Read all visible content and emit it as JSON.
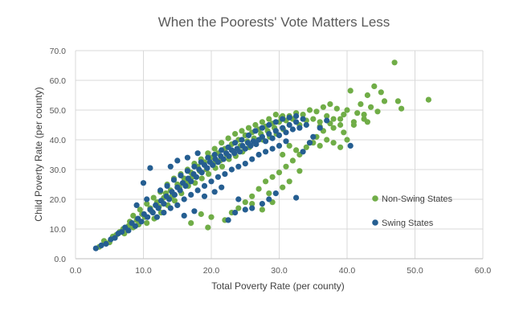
{
  "chart_data": {
    "type": "scatter",
    "title": "When the Poorests' Vote Matters Less",
    "xlabel": "Total Poverty Rate (per county)",
    "ylabel": "Child Poverty Rate (per county)",
    "xlim": [
      0,
      60
    ],
    "ylim": [
      0,
      70
    ],
    "xticks": [
      "0.0",
      "10.0",
      "20.0",
      "30.0",
      "40.0",
      "50.0",
      "60.0"
    ],
    "yticks": [
      "0.0",
      "10.0",
      "20.0",
      "30.0",
      "40.0",
      "50.0",
      "60.0",
      "70.0"
    ],
    "grid": true,
    "legend_position": "right",
    "series": [
      {
        "name": "Non-Swing States",
        "color": "#70ad47",
        "points": [
          [
            3.5,
            4.0
          ],
          [
            4.2,
            6.0
          ],
          [
            5.0,
            5.5
          ],
          [
            5.5,
            7.5
          ],
          [
            6.0,
            8.0
          ],
          [
            6.5,
            9.0
          ],
          [
            7.0,
            10.0
          ],
          [
            7.2,
            8.5
          ],
          [
            7.8,
            11.0
          ],
          [
            8.0,
            12.5
          ],
          [
            8.5,
            10.5
          ],
          [
            9.0,
            13.0
          ],
          [
            9.3,
            11.5
          ],
          [
            9.8,
            15.0
          ],
          [
            10.2,
            14.0
          ],
          [
            10.5,
            12.0
          ],
          [
            11.0,
            17.0
          ],
          [
            11.2,
            16.0
          ],
          [
            11.6,
            13.5
          ],
          [
            12.0,
            19.0
          ],
          [
            12.3,
            17.5
          ],
          [
            12.6,
            15.5
          ],
          [
            13.0,
            20.5
          ],
          [
            13.3,
            22.0
          ],
          [
            13.6,
            18.0
          ],
          [
            14.0,
            23.0
          ],
          [
            14.2,
            21.0
          ],
          [
            14.6,
            19.5
          ],
          [
            15.0,
            25.0
          ],
          [
            15.3,
            24.0
          ],
          [
            15.6,
            22.0
          ],
          [
            16.0,
            27.0
          ],
          [
            16.3,
            26.0
          ],
          [
            16.6,
            24.5
          ],
          [
            17.0,
            29.0
          ],
          [
            17.2,
            27.5
          ],
          [
            17.6,
            25.5
          ],
          [
            18.0,
            31.0
          ],
          [
            18.3,
            29.5
          ],
          [
            18.6,
            27.0
          ],
          [
            19.0,
            32.5
          ],
          [
            19.3,
            30.0
          ],
          [
            19.6,
            28.5
          ],
          [
            20.0,
            34.0
          ],
          [
            20.3,
            32.0
          ],
          [
            20.6,
            30.5
          ],
          [
            21.0,
            35.5
          ],
          [
            21.3,
            33.0
          ],
          [
            21.6,
            31.0
          ],
          [
            22.0,
            37.0
          ],
          [
            22.3,
            35.0
          ],
          [
            22.6,
            33.5
          ],
          [
            23.0,
            38.5
          ],
          [
            23.3,
            36.0
          ],
          [
            23.6,
            34.5
          ],
          [
            24.0,
            40.0
          ],
          [
            24.3,
            38.0
          ],
          [
            24.6,
            36.0
          ],
          [
            25.0,
            41.5
          ],
          [
            25.3,
            39.5
          ],
          [
            25.6,
            37.5
          ],
          [
            26.0,
            42.5
          ],
          [
            26.3,
            40.5
          ],
          [
            26.6,
            38.5
          ],
          [
            27.0,
            43.5
          ],
          [
            27.3,
            42.0
          ],
          [
            27.6,
            40.0
          ],
          [
            28.0,
            44.5
          ],
          [
            28.3,
            43.0
          ],
          [
            28.6,
            41.0
          ],
          [
            29.0,
            45.5
          ],
          [
            29.3,
            44.0
          ],
          [
            29.6,
            42.0
          ],
          [
            30.0,
            46.0
          ],
          [
            30.3,
            47.5
          ],
          [
            30.6,
            43.5
          ],
          [
            31.0,
            46.5
          ],
          [
            31.5,
            48.0
          ],
          [
            32.0,
            47.0
          ],
          [
            32.5,
            49.0
          ],
          [
            33.0,
            45.0
          ],
          [
            33.5,
            48.5
          ],
          [
            34.0,
            46.5
          ],
          [
            34.5,
            50.0
          ],
          [
            35.0,
            47.0
          ],
          [
            35.5,
            49.5
          ],
          [
            36.0,
            46.0
          ],
          [
            36.5,
            51.0
          ],
          [
            37.0,
            48.0
          ],
          [
            37.5,
            52.0
          ],
          [
            38.0,
            47.0
          ],
          [
            38.5,
            50.5
          ],
          [
            39.0,
            45.0
          ],
          [
            39.5,
            48.5
          ],
          [
            40.0,
            50.0
          ],
          [
            40.5,
            56.5
          ],
          [
            41.0,
            46.0
          ],
          [
            41.5,
            49.0
          ],
          [
            42.0,
            52.0
          ],
          [
            42.5,
            47.0
          ],
          [
            43.0,
            55.0
          ],
          [
            43.5,
            51.0
          ],
          [
            44.0,
            58.0
          ],
          [
            44.5,
            49.5
          ],
          [
            45.0,
            56.0
          ],
          [
            45.5,
            53.0
          ],
          [
            47.0,
            66.0
          ],
          [
            47.5,
            53.0
          ],
          [
            48.0,
            50.5
          ],
          [
            52.0,
            53.5
          ],
          [
            22.0,
            13.0
          ],
          [
            23.0,
            15.5
          ],
          [
            24.0,
            17.0
          ],
          [
            25.0,
            19.0
          ],
          [
            26.0,
            21.0
          ],
          [
            27.0,
            23.5
          ],
          [
            28.0,
            26.0
          ],
          [
            29.0,
            27.5
          ],
          [
            30.0,
            29.0
          ],
          [
            31.0,
            31.0
          ],
          [
            32.0,
            33.0
          ],
          [
            33.0,
            35.0
          ],
          [
            34.0,
            37.5
          ],
          [
            35.0,
            39.0
          ],
          [
            36.0,
            38.0
          ],
          [
            37.0,
            40.0
          ],
          [
            38.0,
            39.0
          ],
          [
            39.0,
            37.5
          ],
          [
            40.0,
            40.0
          ],
          [
            27.5,
            16.5
          ],
          [
            29.0,
            19.0
          ],
          [
            30.5,
            24.0
          ],
          [
            31.5,
            26.0
          ],
          [
            26.0,
            18.5
          ],
          [
            19.5,
            10.5
          ],
          [
            20.0,
            14.0
          ],
          [
            17.0,
            12.0
          ],
          [
            18.5,
            15.0
          ],
          [
            28.5,
            22.0
          ],
          [
            33.0,
            29.5
          ],
          [
            36.5,
            43.0
          ],
          [
            38.0,
            44.0
          ],
          [
            41.0,
            45.0
          ],
          [
            43.0,
            46.0
          ],
          [
            39.5,
            42.5
          ],
          [
            35.5,
            41.0
          ],
          [
            34.5,
            39.0
          ],
          [
            32.5,
            36.5
          ],
          [
            31.5,
            38.0
          ],
          [
            30.5,
            35.0
          ],
          [
            12.5,
            22.5
          ],
          [
            13.5,
            25.0
          ],
          [
            14.5,
            27.0
          ],
          [
            15.5,
            28.5
          ],
          [
            16.5,
            30.0
          ],
          [
            17.5,
            32.0
          ],
          [
            18.5,
            33.5
          ],
          [
            19.5,
            35.5
          ],
          [
            20.5,
            37.0
          ],
          [
            21.5,
            39.0
          ],
          [
            22.5,
            40.5
          ],
          [
            23.5,
            42.0
          ],
          [
            24.5,
            43.0
          ],
          [
            25.5,
            44.0
          ],
          [
            26.5,
            45.0
          ],
          [
            27.5,
            46.0
          ],
          [
            11.5,
            20.5
          ],
          [
            10.5,
            18.5
          ],
          [
            9.5,
            16.5
          ],
          [
            8.5,
            14.5
          ],
          [
            29.5,
            48.5
          ],
          [
            30.5,
            48.0
          ],
          [
            28.5,
            47.0
          ],
          [
            36.0,
            44.5
          ],
          [
            37.5,
            45.5
          ],
          [
            39.0,
            47.0
          ],
          [
            42.5,
            48.5
          ]
        ]
      },
      {
        "name": "Swing States",
        "color": "#255e91",
        "points": [
          [
            3.0,
            3.5
          ],
          [
            3.8,
            4.5
          ],
          [
            4.5,
            5.0
          ],
          [
            5.2,
            6.5
          ],
          [
            5.8,
            7.0
          ],
          [
            6.3,
            8.5
          ],
          [
            6.8,
            9.0
          ],
          [
            7.3,
            10.5
          ],
          [
            7.8,
            9.5
          ],
          [
            8.3,
            12.0
          ],
          [
            8.8,
            11.0
          ],
          [
            9.2,
            13.5
          ],
          [
            9.7,
            12.5
          ],
          [
            10.1,
            15.0
          ],
          [
            10.6,
            14.0
          ],
          [
            11.0,
            16.5
          ],
          [
            11.4,
            15.5
          ],
          [
            11.8,
            18.0
          ],
          [
            12.2,
            17.0
          ],
          [
            12.6,
            19.5
          ],
          [
            13.0,
            18.5
          ],
          [
            13.4,
            21.0
          ],
          [
            13.8,
            20.0
          ],
          [
            14.2,
            22.5
          ],
          [
            14.6,
            21.5
          ],
          [
            15.0,
            24.0
          ],
          [
            15.4,
            23.0
          ],
          [
            15.8,
            25.5
          ],
          [
            16.2,
            24.5
          ],
          [
            16.6,
            27.0
          ],
          [
            17.0,
            26.0
          ],
          [
            17.4,
            28.5
          ],
          [
            17.8,
            27.5
          ],
          [
            18.2,
            30.0
          ],
          [
            18.6,
            29.0
          ],
          [
            19.0,
            31.5
          ],
          [
            19.4,
            30.5
          ],
          [
            19.8,
            32.5
          ],
          [
            20.2,
            31.5
          ],
          [
            20.6,
            33.5
          ],
          [
            21.0,
            32.5
          ],
          [
            21.4,
            34.5
          ],
          [
            21.8,
            33.5
          ],
          [
            22.2,
            35.5
          ],
          [
            22.6,
            34.5
          ],
          [
            23.0,
            36.5
          ],
          [
            23.4,
            35.5
          ],
          [
            23.8,
            37.0
          ],
          [
            24.2,
            36.0
          ],
          [
            24.6,
            38.0
          ],
          [
            25.0,
            37.0
          ],
          [
            25.4,
            39.0
          ],
          [
            25.8,
            38.0
          ],
          [
            26.2,
            39.5
          ],
          [
            26.6,
            38.5
          ],
          [
            27.0,
            40.0
          ],
          [
            27.5,
            41.0
          ],
          [
            28.0,
            39.5
          ],
          [
            28.5,
            42.0
          ],
          [
            29.0,
            40.5
          ],
          [
            29.5,
            43.0
          ],
          [
            30.0,
            41.5
          ],
          [
            30.5,
            44.0
          ],
          [
            31.0,
            42.5
          ],
          [
            31.5,
            45.0
          ],
          [
            32.0,
            43.5
          ],
          [
            32.5,
            46.0
          ],
          [
            33.0,
            44.0
          ],
          [
            33.5,
            47.0
          ],
          [
            34.0,
            45.0
          ],
          [
            15.0,
            18.0
          ],
          [
            16.0,
            20.0
          ],
          [
            17.0,
            21.5
          ],
          [
            18.0,
            23.0
          ],
          [
            19.0,
            24.5
          ],
          [
            20.0,
            26.0
          ],
          [
            21.0,
            27.5
          ],
          [
            22.0,
            28.5
          ],
          [
            23.0,
            30.0
          ],
          [
            24.0,
            31.0
          ],
          [
            25.0,
            32.0
          ],
          [
            26.0,
            33.5
          ],
          [
            27.0,
            35.0
          ],
          [
            28.0,
            36.0
          ],
          [
            29.0,
            37.0
          ],
          [
            30.0,
            38.0
          ],
          [
            31.0,
            39.5
          ],
          [
            12.0,
            14.0
          ],
          [
            13.0,
            15.5
          ],
          [
            14.0,
            17.0
          ],
          [
            11.0,
            30.5
          ],
          [
            14.0,
            31.0
          ],
          [
            15.0,
            33.0
          ],
          [
            16.5,
            34.0
          ],
          [
            18.0,
            35.5
          ],
          [
            10.0,
            25.5
          ],
          [
            22.5,
            13.0
          ],
          [
            23.5,
            15.5
          ],
          [
            25.0,
            16.5
          ],
          [
            24.0,
            20.0
          ],
          [
            26.0,
            17.0
          ],
          [
            27.5,
            18.5
          ],
          [
            28.5,
            20.0
          ],
          [
            29.5,
            22.0
          ],
          [
            32.5,
            20.5
          ],
          [
            40.5,
            38.0
          ],
          [
            34.5,
            39.0
          ],
          [
            33.5,
            36.0
          ],
          [
            35.0,
            41.0
          ],
          [
            36.0,
            44.0
          ],
          [
            37.0,
            46.5
          ],
          [
            19.0,
            21.0
          ],
          [
            20.5,
            22.5
          ],
          [
            21.5,
            24.0
          ],
          [
            17.5,
            16.0
          ],
          [
            16.0,
            14.5
          ],
          [
            9.0,
            18.0
          ],
          [
            10.5,
            20.0
          ],
          [
            12.5,
            23.0
          ],
          [
            13.5,
            24.5
          ],
          [
            14.5,
            26.5
          ],
          [
            15.5,
            28.0
          ],
          [
            16.5,
            29.5
          ],
          [
            17.5,
            31.0
          ],
          [
            18.5,
            32.5
          ],
          [
            19.5,
            34.0
          ],
          [
            20.5,
            35.0
          ],
          [
            21.5,
            36.5
          ],
          [
            22.5,
            37.5
          ],
          [
            23.5,
            39.0
          ],
          [
            24.5,
            40.0
          ],
          [
            25.5,
            41.5
          ],
          [
            26.5,
            43.0
          ],
          [
            27.5,
            44.0
          ],
          [
            28.5,
            45.0
          ],
          [
            29.5,
            46.0
          ],
          [
            30.5,
            47.0
          ],
          [
            31.5,
            47.5
          ],
          [
            32.5,
            48.0
          ]
        ]
      }
    ]
  }
}
